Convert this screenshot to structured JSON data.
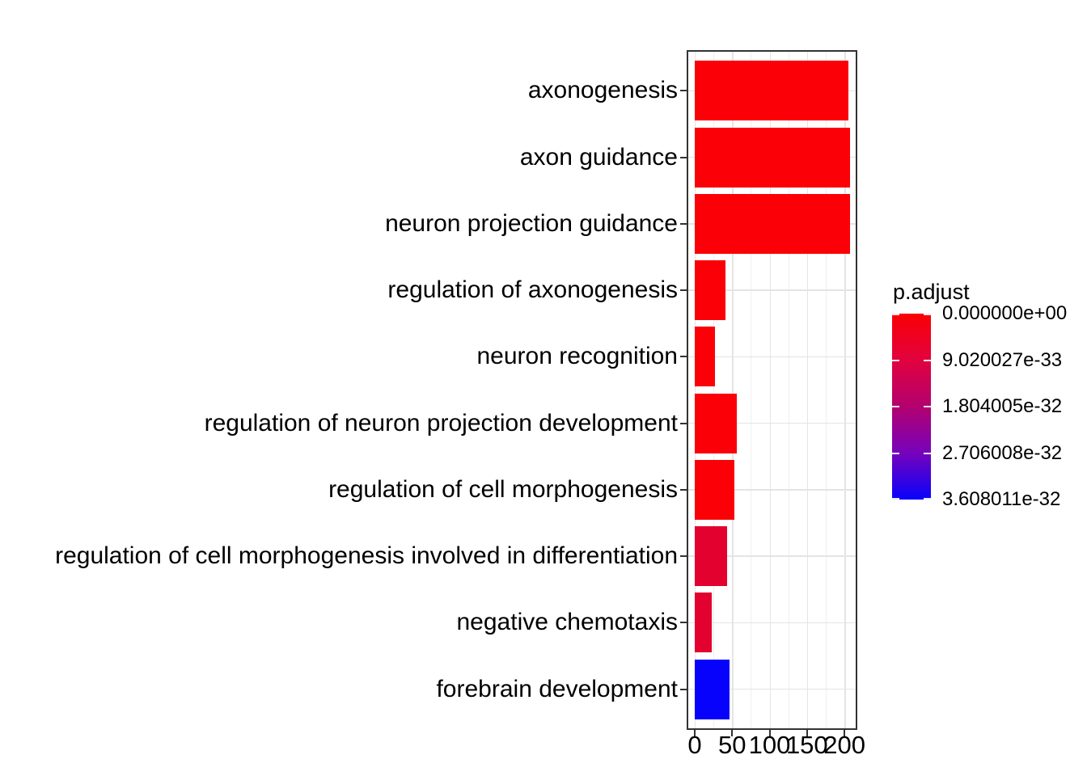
{
  "chart_data": {
    "type": "bar",
    "orientation": "horizontal",
    "title": "",
    "xlabel": "",
    "ylabel": "",
    "categories": [
      "axonogenesis",
      "axon guidance",
      "neuron projection guidance",
      "regulation of axonogenesis",
      "neuron recognition",
      "regulation of neuron projection development",
      "regulation of cell morphogenesis",
      "regulation of cell morphogenesis involved in differentiation",
      "negative chemotaxis",
      "forebrain development"
    ],
    "values": [
      205,
      208,
      207,
      41,
      27,
      56,
      53,
      43,
      23,
      46
    ],
    "bar_colors": [
      "#FB0007",
      "#FB0007",
      "#FB0007",
      "#FB0007",
      "#FB0007",
      "#FB0007",
      "#FB0007",
      "#E2012F",
      "#E2012F",
      "#0702FB"
    ],
    "x_ticks": [
      0,
      50,
      100,
      150,
      200
    ],
    "x_tick_labels": [
      "0",
      "50",
      "100",
      "150",
      "200"
    ],
    "x_minor_ticks": [
      25,
      75,
      125,
      175
    ],
    "xlim": [
      -9.7,
      216.1
    ],
    "grid": true,
    "legend": {
      "title": "p.adjust",
      "position": "right",
      "type": "colorbar",
      "labels": [
        "0.000000e+00",
        "9.020027e-33",
        "1.804005e-32",
        "2.706008e-32",
        "3.608011e-32"
      ],
      "gradient_stops": [
        "#FB0004",
        "#E1023E",
        "#B3016F",
        "#7603BC",
        "#0901FB"
      ]
    },
    "colors": {
      "grid_major": "#E4E4E4",
      "grid_minor": "#EFEFEF",
      "panel_border": "#333333",
      "text": "#000000",
      "background": "#FFFFFF"
    }
  }
}
